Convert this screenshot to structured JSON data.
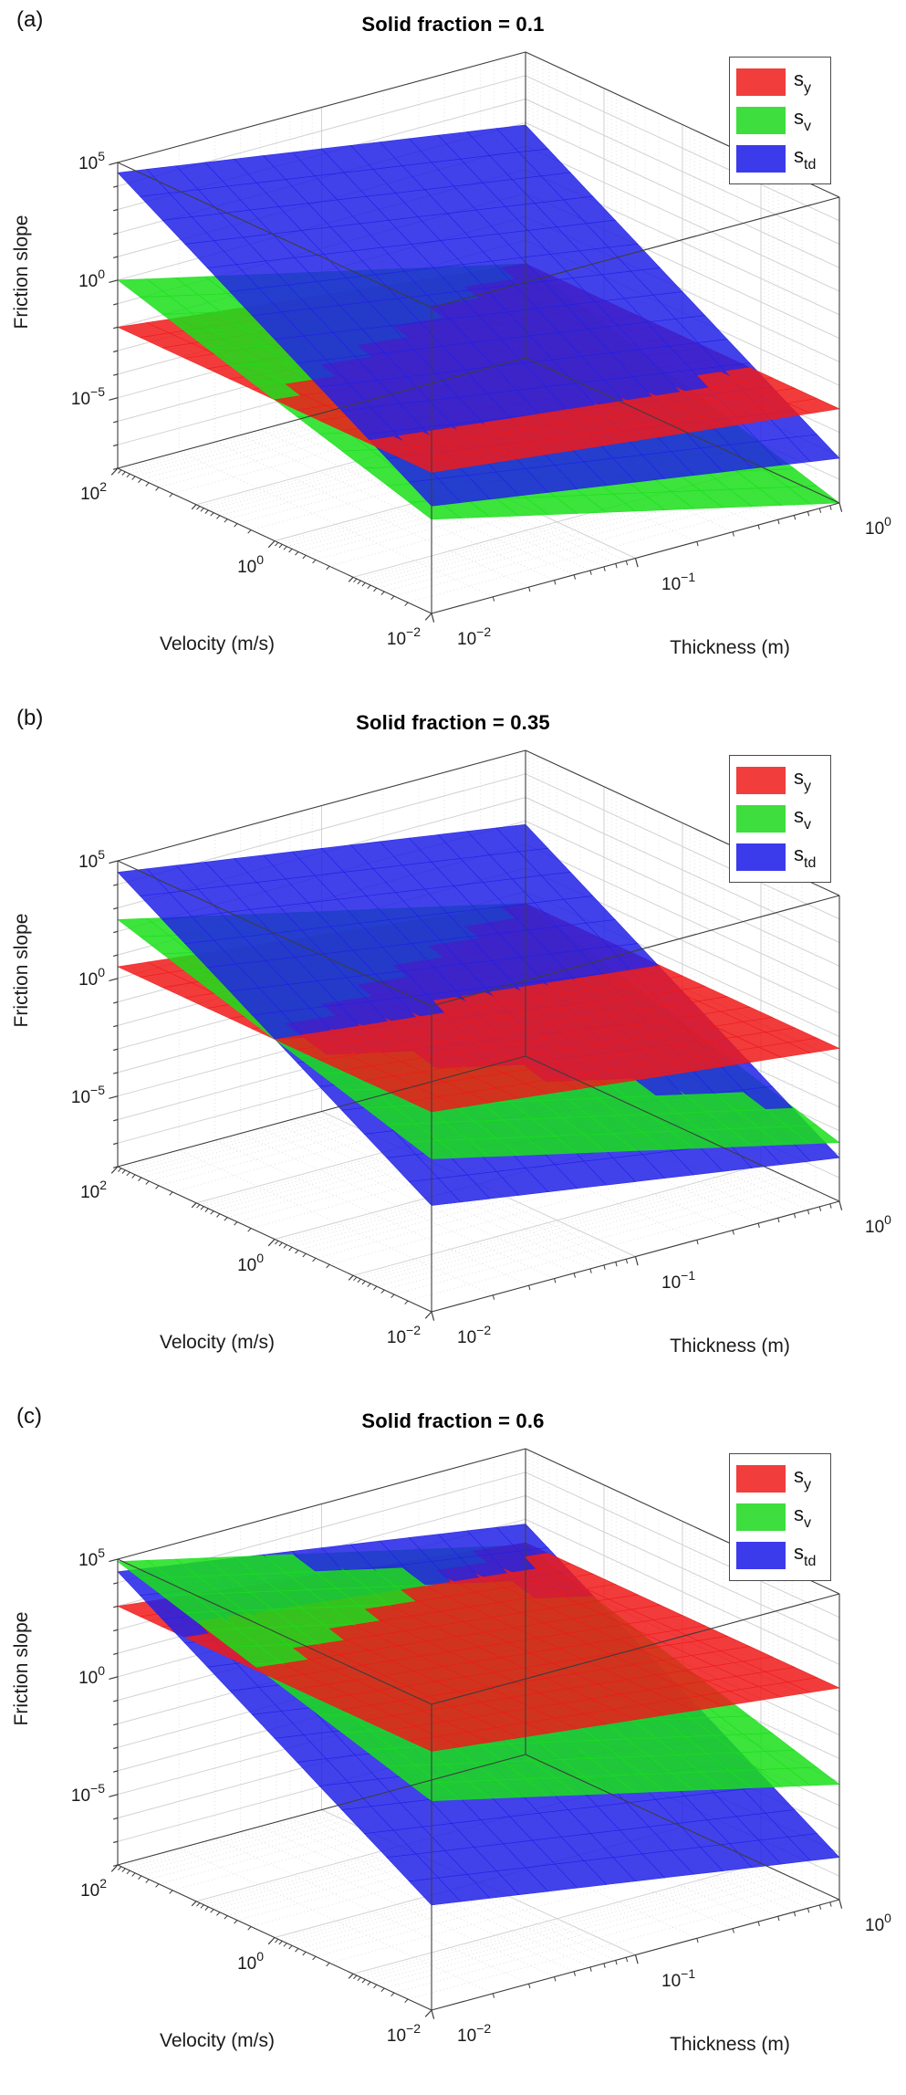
{
  "page": {
    "background": "#ffffff"
  },
  "legend": {
    "border_color": "#4a4a4a",
    "entries": [
      {
        "main": "s",
        "sub": "y",
        "color": "#f23d3d"
      },
      {
        "main": "s",
        "sub": "v",
        "color": "#3dde3d"
      },
      {
        "main": "s",
        "sub": "td",
        "color": "#3b3beb"
      }
    ]
  },
  "style": {
    "surface_opacity": 0.85,
    "grid_major_color": "#d2d2d2",
    "grid_minor_color": "#e1e1e1",
    "edge_color": "#3d3d3d",
    "tick_color": "#3d3d3d",
    "label_color": "#1a1a1a"
  },
  "chart_data": [
    {
      "panel_label": "(a)",
      "title": "Solid fraction = 0.1",
      "solid_fraction": 0.1,
      "type": "surface3d",
      "view": {
        "azimuth_deg": -37.5,
        "elevation_deg": 21,
        "projection": "orthographic"
      },
      "axes": {
        "x": {
          "label": "Thickness (m)",
          "scale": "log10",
          "log_range": [
            -2,
            0
          ],
          "tick_exponents": [
            -2,
            -1,
            0
          ],
          "tick_labels": [
            "10⁻²",
            "10⁻¹",
            "10⁰"
          ]
        },
        "y": {
          "label": "Velocity (m/s)",
          "scale": "log10",
          "log_range": [
            -2,
            2
          ],
          "tick_exponents": [
            2,
            0,
            -2
          ],
          "tick_labels": [
            "10²",
            "10⁰",
            "10⁻²"
          ]
        },
        "z": {
          "label": "Friction slope",
          "scale": "log10",
          "log_range": [
            -8,
            5
          ],
          "tick_exponents": [
            5,
            0,
            -5
          ],
          "tick_labels": [
            "10⁵",
            "10⁰",
            "10⁻⁵"
          ]
        }
      },
      "surface_model": "log10(s) = c + a*log10(velocity) + b*log10(thickness), clipped to z range",
      "surfaces": [
        {
          "name": "s_y",
          "color": "#f01a1a",
          "c": -4.0,
          "a": 0,
          "b": -1,
          "log10_at_v100_h0p01": -2.0
        },
        {
          "name": "s_v",
          "color": "#1adf1a",
          "c": -6.0,
          "a": 1,
          "b": -2,
          "log10_at_v100_h0p01": 0.0
        },
        {
          "name": "s_td",
          "color": "#2121e8",
          "c": -2.1,
          "a": 2,
          "b": -1.3333,
          "log10_at_v100_h0p01": 4.57
        }
      ]
    },
    {
      "panel_label": "(b)",
      "title": "Solid fraction = 0.35",
      "solid_fraction": 0.35,
      "type": "surface3d",
      "view": {
        "azimuth_deg": -37.5,
        "elevation_deg": 21,
        "projection": "orthographic"
      },
      "axes": {
        "x": {
          "label": "Thickness (m)",
          "scale": "log10",
          "log_range": [
            -2,
            0
          ],
          "tick_exponents": [
            -2,
            -1,
            0
          ],
          "tick_labels": [
            "10⁻²",
            "10⁻¹",
            "10⁰"
          ]
        },
        "y": {
          "label": "Velocity (m/s)",
          "scale": "log10",
          "log_range": [
            -2,
            2
          ],
          "tick_exponents": [
            2,
            0,
            -2
          ],
          "tick_labels": [
            "10²",
            "10⁰",
            "10⁻²"
          ]
        },
        "z": {
          "label": "Friction slope",
          "scale": "log10",
          "log_range": [
            -8,
            5
          ],
          "tick_exponents": [
            5,
            0,
            -5
          ],
          "tick_labels": [
            "10⁵",
            "10⁰",
            "10⁻⁵"
          ]
        }
      },
      "surface_model": "log10(s) = c + a*log10(velocity) + b*log10(thickness), clipped to z range",
      "surfaces": [
        {
          "name": "s_y",
          "color": "#f01a1a",
          "c": -1.5,
          "a": 0,
          "b": -1,
          "log10_at_v100_h0p01": 0.5
        },
        {
          "name": "s_v",
          "color": "#1adf1a",
          "c": -3.5,
          "a": 1,
          "b": -2,
          "log10_at_v100_h0p01": 2.5
        },
        {
          "name": "s_td",
          "color": "#2121e8",
          "c": -2.15,
          "a": 2,
          "b": -1.3333,
          "log10_at_v100_h0p01": 4.52
        }
      ]
    },
    {
      "panel_label": "(c)",
      "title": "Solid fraction = 0.6",
      "solid_fraction": 0.6,
      "type": "surface3d",
      "view": {
        "azimuth_deg": -37.5,
        "elevation_deg": 21,
        "projection": "orthographic"
      },
      "axes": {
        "x": {
          "label": "Thickness (m)",
          "scale": "log10",
          "log_range": [
            -2,
            0
          ],
          "tick_exponents": [
            -2,
            -1,
            0
          ],
          "tick_labels": [
            "10⁻²",
            "10⁻¹",
            "10⁰"
          ]
        },
        "y": {
          "label": "Velocity (m/s)",
          "scale": "log10",
          "log_range": [
            -2,
            2
          ],
          "tick_exponents": [
            2,
            0,
            -2
          ],
          "tick_labels": [
            "10²",
            "10⁰",
            "10⁻²"
          ]
        },
        "z": {
          "label": "Friction slope",
          "scale": "log10",
          "log_range": [
            -8,
            5
          ],
          "tick_exponents": [
            5,
            0,
            -5
          ],
          "tick_labels": [
            "10⁵",
            "10⁰",
            "10⁻⁵"
          ]
        }
      },
      "surface_model": "log10(s) = c + a*log10(velocity) + b*log10(thickness), clipped to z range",
      "surfaces": [
        {
          "name": "s_y",
          "color": "#f01a1a",
          "c": 1.0,
          "a": 0,
          "b": -1,
          "log10_at_v100_h0p01": 3.0
        },
        {
          "name": "s_v",
          "color": "#1adf1a",
          "c": -1.1,
          "a": 1,
          "b": -2,
          "log10_at_v100_h0p01": 4.9
        },
        {
          "name": "s_td",
          "color": "#2121e8",
          "c": -2.2,
          "a": 2,
          "b": -1.3333,
          "log10_at_v100_h0p01": 4.47
        }
      ]
    }
  ]
}
